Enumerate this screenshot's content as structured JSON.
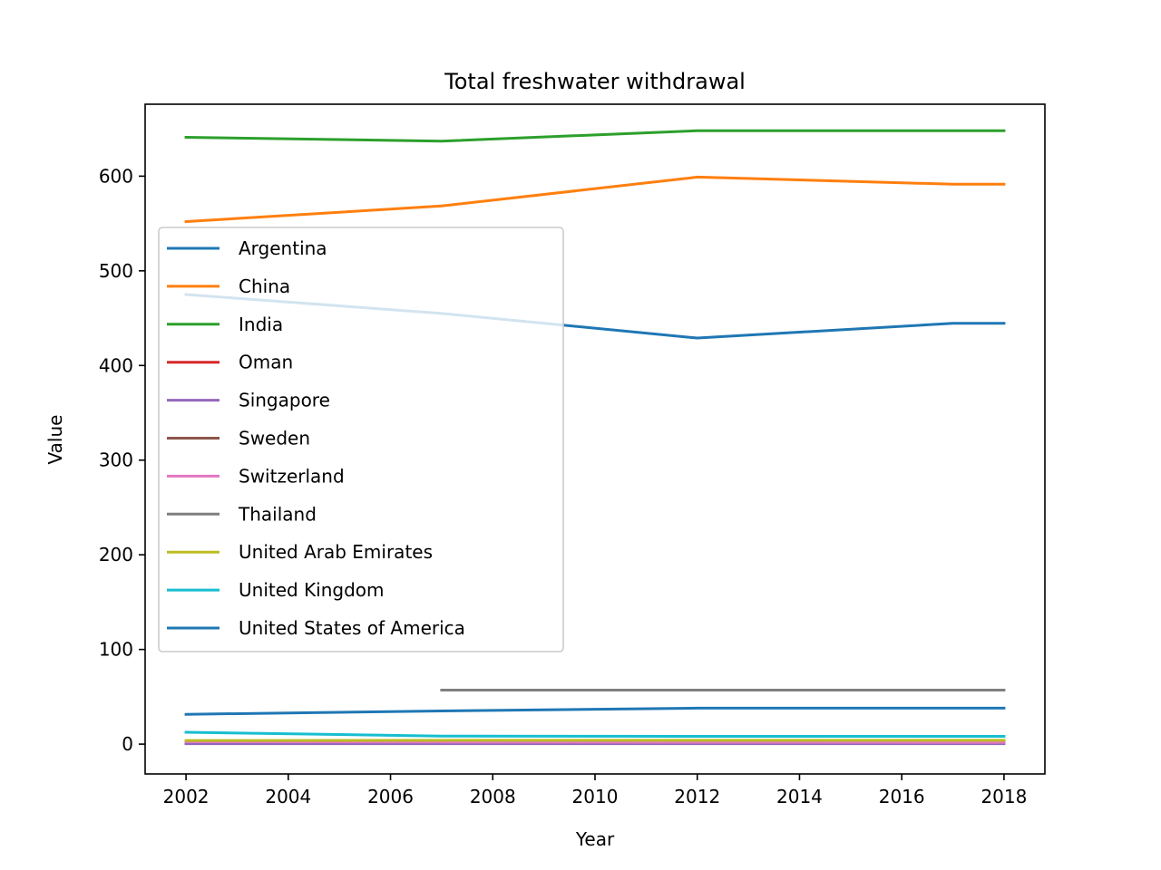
{
  "chart_data": {
    "type": "line",
    "title": "Total freshwater withdrawal",
    "xlabel": "Year",
    "ylabel": "Value",
    "xlim": [
      2001.2,
      2018.8
    ],
    "ylim": [
      -31.5,
      676
    ],
    "xticks": [
      2002,
      2004,
      2006,
      2008,
      2010,
      2012,
      2014,
      2016,
      2018
    ],
    "yticks": [
      0,
      100,
      200,
      300,
      400,
      500,
      600
    ],
    "grid": false,
    "legend_position": "upper-left",
    "series": [
      {
        "name": "Argentina",
        "color": "#1f77b4",
        "x": [
          2002,
          2007,
          2012,
          2017,
          2018
        ],
        "y": [
          475,
          455,
          429,
          444.5,
          444.5
        ]
      },
      {
        "name": "China",
        "color": "#ff7f0e",
        "x": [
          2002,
          2007,
          2012,
          2017,
          2018
        ],
        "y": [
          552,
          568.5,
          599,
          591.5,
          591.5
        ]
      },
      {
        "name": "India",
        "color": "#2ca02c",
        "x": [
          2002,
          2007,
          2012,
          2017,
          2018
        ],
        "y": [
          641,
          637,
          648,
          648,
          648
        ]
      },
      {
        "name": "Oman",
        "color": "#d62728",
        "x": [
          2002,
          2007,
          2012,
          2017,
          2018
        ],
        "y": [
          1.2,
          1.3,
          1.3,
          1.3,
          1.3
        ]
      },
      {
        "name": "Singapore",
        "color": "#9467bd",
        "x": [
          2002,
          2007,
          2012,
          2017,
          2018
        ],
        "y": [
          0.4,
          0.4,
          0.4,
          0.4,
          0.4
        ]
      },
      {
        "name": "Sweden",
        "color": "#8c564b",
        "x": [
          2002,
          2007,
          2012,
          2017,
          2018
        ],
        "y": [
          2.7,
          2.7,
          2.7,
          2.7,
          2.7
        ]
      },
      {
        "name": "Switzerland",
        "color": "#e377c2",
        "x": [
          2002,
          2007,
          2012,
          2017,
          2018
        ],
        "y": [
          2.5,
          2.2,
          2.0,
          1.9,
          1.9
        ]
      },
      {
        "name": "Thailand",
        "color": "#7f7f7f",
        "x": [
          2007,
          2012,
          2017,
          2018
        ],
        "y": [
          57,
          57,
          57,
          57
        ]
      },
      {
        "name": "United Arab Emirates",
        "color": "#bcbd22",
        "x": [
          2002,
          2007,
          2012,
          2017,
          2018
        ],
        "y": [
          3.8,
          4.0,
          4.0,
          4.0,
          4.0
        ]
      },
      {
        "name": "United Kingdom",
        "color": "#17becf",
        "x": [
          2002,
          2007,
          2012,
          2017,
          2018
        ],
        "y": [
          12.5,
          8.5,
          8.2,
          8.2,
          8.2
        ]
      },
      {
        "name": "United States of America",
        "color": "#1f77b4",
        "x": [
          2002,
          2007,
          2012,
          2017,
          2018
        ],
        "y": [
          31.5,
          35,
          38,
          38,
          38
        ]
      }
    ]
  }
}
